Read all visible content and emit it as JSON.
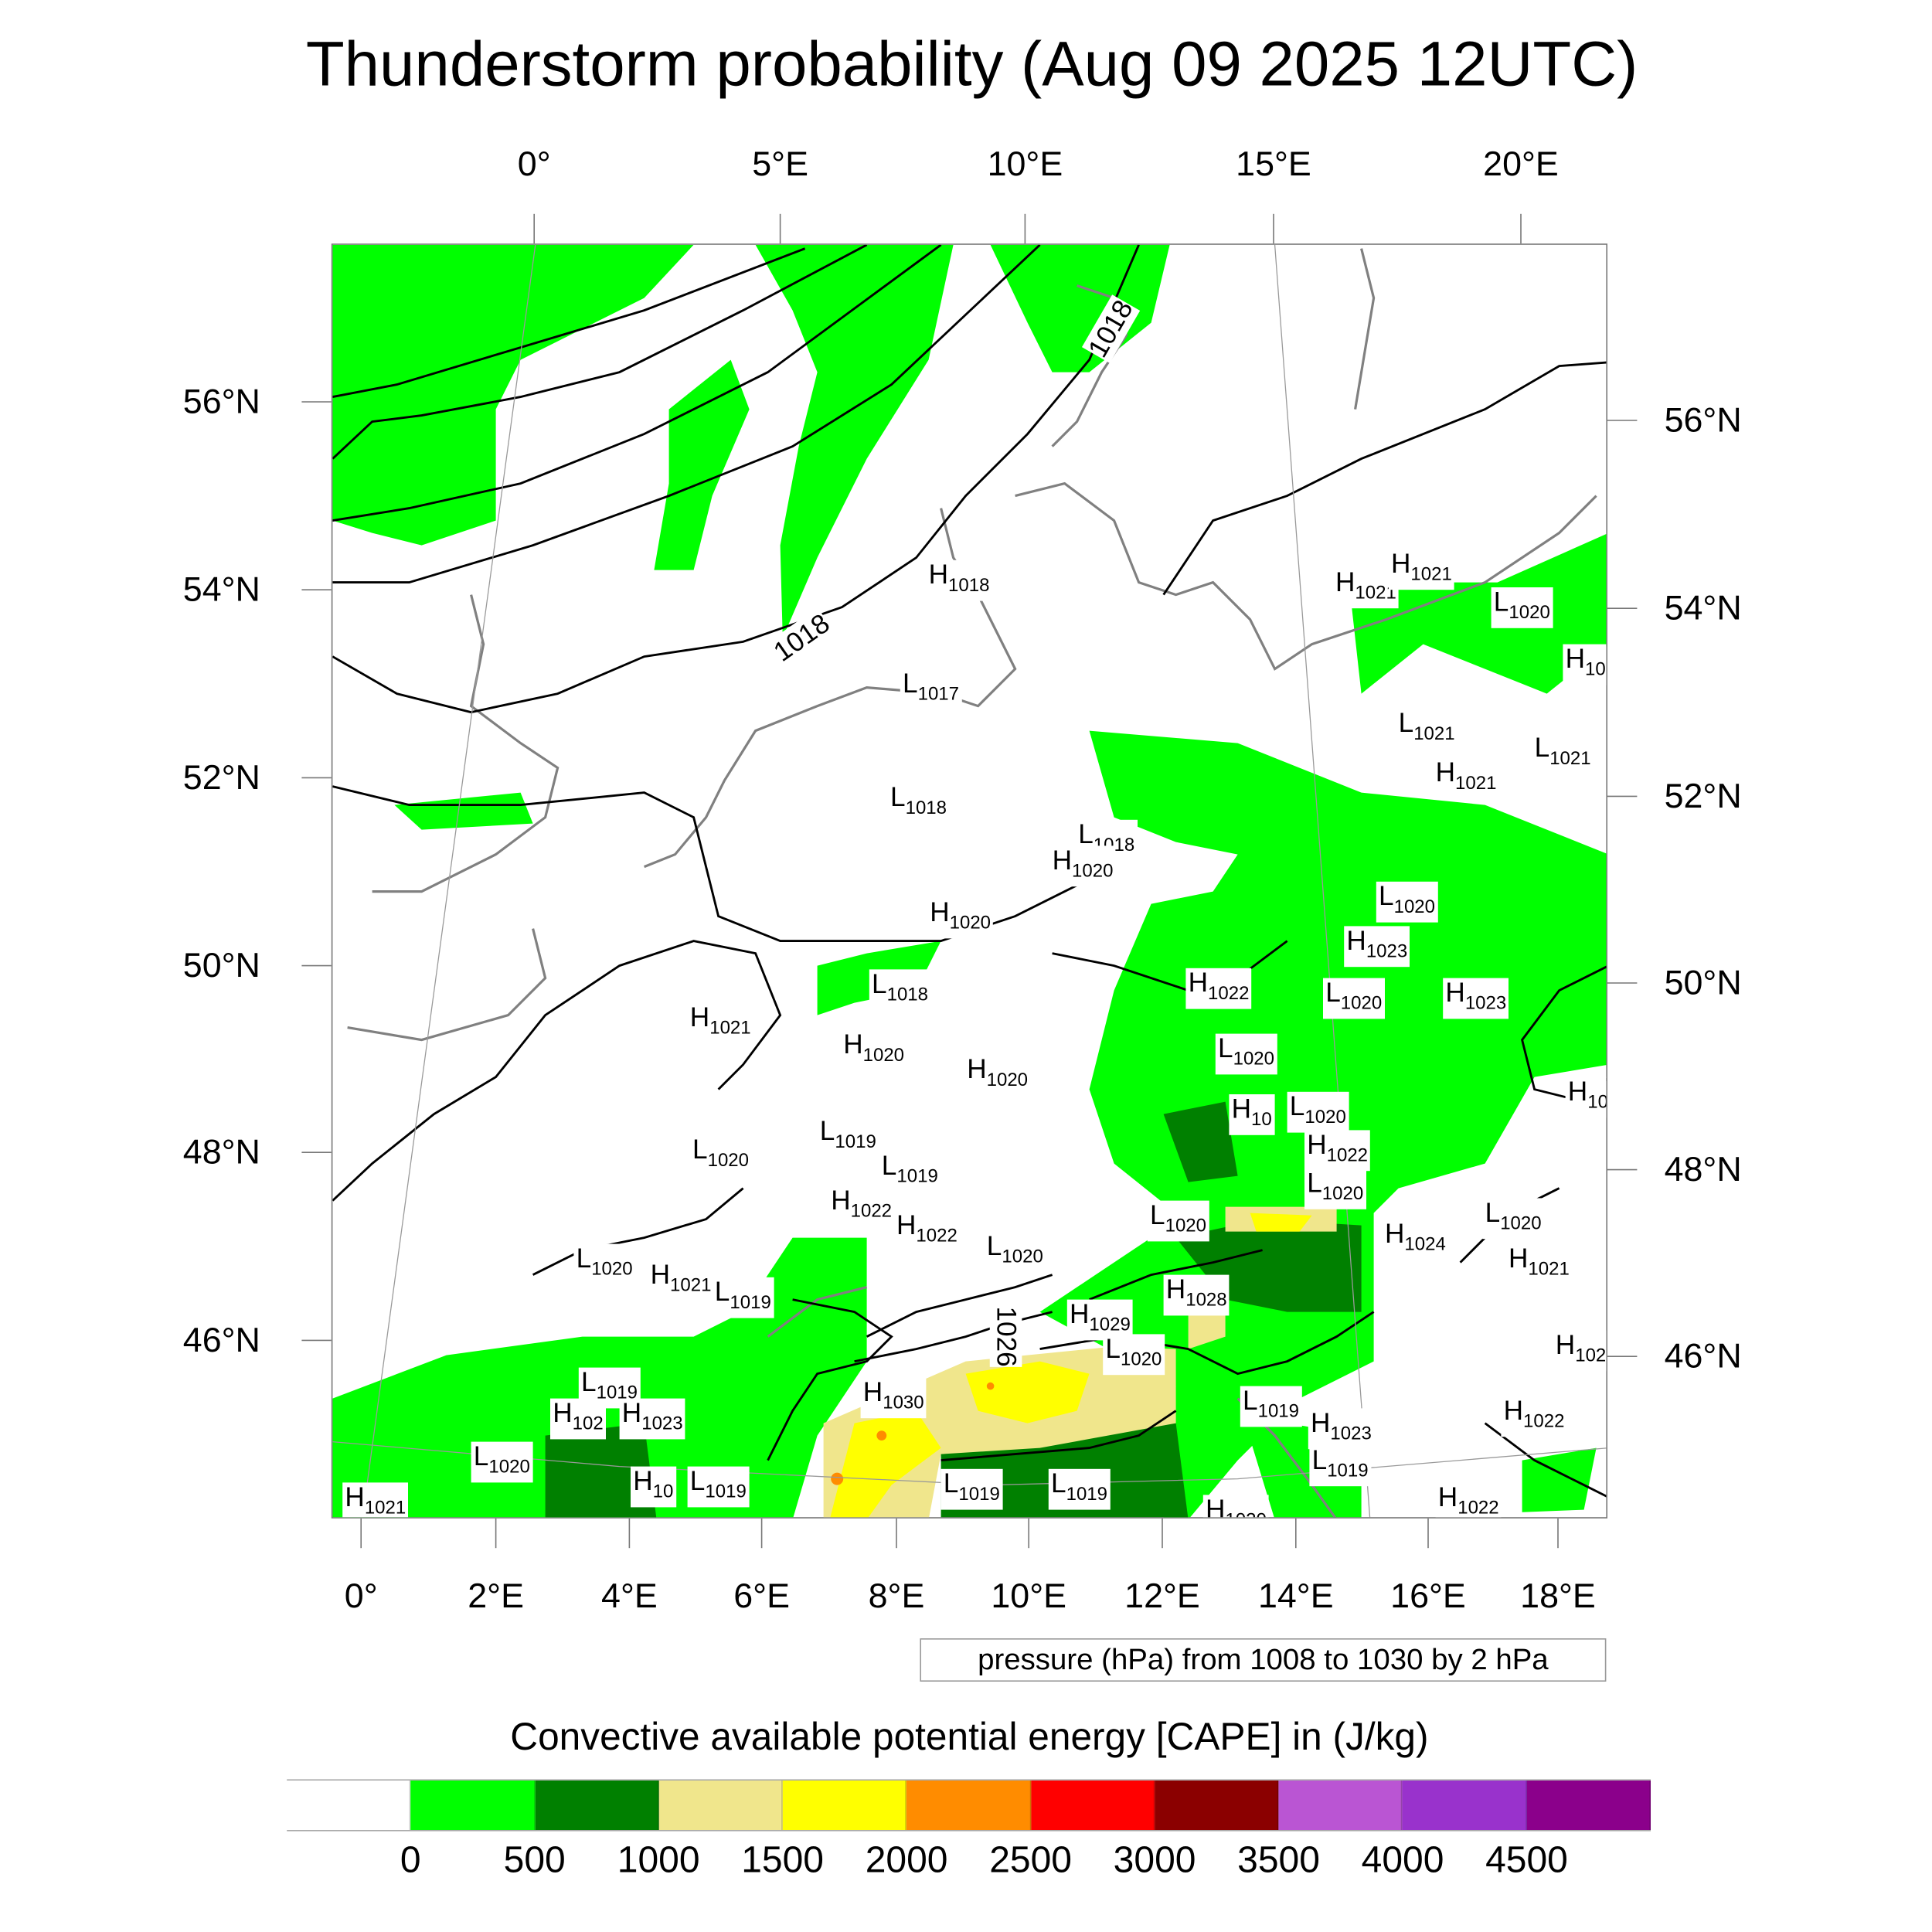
{
  "title": "Thunderstorm probability (Aug 09 2025 12UTC)",
  "axes": {
    "top_lon": [
      "0°",
      "5°E",
      "10°E",
      "15°E",
      "20°E"
    ],
    "bottom_lon": [
      "0°",
      "2°E",
      "4°E",
      "6°E",
      "8°E",
      "10°E",
      "12°E",
      "14°E",
      "16°E",
      "18°E"
    ],
    "left_lat": [
      "56°N",
      "54°N",
      "52°N",
      "50°N",
      "48°N",
      "46°N"
    ],
    "right_lat": [
      "56°N",
      "54°N",
      "52°N",
      "50°N",
      "48°N",
      "46°N"
    ]
  },
  "pressure_legend": "pressure (hPa) from 1008 to 1030 by 2 hPa",
  "isobar_labels": [
    "1018",
    "1018",
    "1026"
  ],
  "pressure_centers": [
    {
      "t": "H",
      "v": "1018"
    },
    {
      "t": "L",
      "v": "1017"
    },
    {
      "t": "L",
      "v": "1018"
    },
    {
      "t": "L",
      "v": "1018"
    },
    {
      "t": "H",
      "v": "1020"
    },
    {
      "t": "H",
      "v": "1020"
    },
    {
      "t": "L",
      "v": "1018"
    },
    {
      "t": "H",
      "v": "1021"
    },
    {
      "t": "H",
      "v": "1020"
    },
    {
      "t": "H",
      "v": "1020"
    },
    {
      "t": "L",
      "v": "1019"
    },
    {
      "t": "L",
      "v": "1019"
    },
    {
      "t": "L",
      "v": "1020"
    },
    {
      "t": "H",
      "v": "1022"
    },
    {
      "t": "H",
      "v": "1022"
    },
    {
      "t": "L",
      "v": "1020"
    },
    {
      "t": "L",
      "v": "1020"
    },
    {
      "t": "H",
      "v": "1021"
    },
    {
      "t": "L",
      "v": "1019"
    },
    {
      "t": "H",
      "v": "1029"
    },
    {
      "t": "H",
      "v": "1028"
    },
    {
      "t": "L",
      "v": "1020"
    },
    {
      "t": "L",
      "v": "1020"
    },
    {
      "t": "H",
      "v": "1030"
    },
    {
      "t": "L",
      "v": "1019"
    },
    {
      "t": "H",
      "v": "102"
    },
    {
      "t": "H",
      "v": "1023"
    },
    {
      "t": "L",
      "v": "1020"
    },
    {
      "t": "H",
      "v": "1021"
    },
    {
      "t": "H",
      "v": "10"
    },
    {
      "t": "L",
      "v": "1019"
    },
    {
      "t": "L",
      "v": "1019"
    },
    {
      "t": "L",
      "v": "1019"
    },
    {
      "t": "H",
      "v": "1020"
    },
    {
      "t": "L",
      "v": "1019"
    },
    {
      "t": "H",
      "v": "1023"
    },
    {
      "t": "L",
      "v": "1019"
    },
    {
      "t": "H",
      "v": "1022"
    },
    {
      "t": "H",
      "v": "1022"
    },
    {
      "t": "H",
      "v": "102"
    },
    {
      "t": "H",
      "v": "1021"
    },
    {
      "t": "L",
      "v": "1020"
    },
    {
      "t": "H",
      "v": "1024"
    },
    {
      "t": "L",
      "v": "1020"
    },
    {
      "t": "H",
      "v": "1022"
    },
    {
      "t": "L",
      "v": "1020"
    },
    {
      "t": "H",
      "v": "10"
    },
    {
      "t": "L",
      "v": "1020"
    },
    {
      "t": "H",
      "v": "1022"
    },
    {
      "t": "L",
      "v": "1020"
    },
    {
      "t": "H",
      "v": "1023"
    },
    {
      "t": "L",
      "v": "1020"
    },
    {
      "t": "H",
      "v": "1023"
    },
    {
      "t": "H",
      "v": "10"
    },
    {
      "t": "L",
      "v": "1021"
    },
    {
      "t": "H",
      "v": "1021"
    },
    {
      "t": "L",
      "v": "1021"
    },
    {
      "t": "H",
      "v": "10"
    },
    {
      "t": "L",
      "v": "1020"
    },
    {
      "t": "H",
      "v": "1021"
    },
    {
      "t": "H",
      "v": "1021"
    }
  ],
  "colorbar": {
    "title": "Convective available potential energy [CAPE] in (J/kg)",
    "colors": [
      "#ffffff",
      "#00ff00",
      "#008000",
      "#f0e68c",
      "#ffff00",
      "#ff8c00",
      "#ff0000",
      "#8b0000",
      "#ba55d3",
      "#9932cc",
      "#8b008b"
    ],
    "labels": [
      "0",
      "500",
      "1000",
      "1500",
      "2000",
      "2500",
      "3000",
      "3500",
      "4000",
      "4500"
    ]
  }
}
